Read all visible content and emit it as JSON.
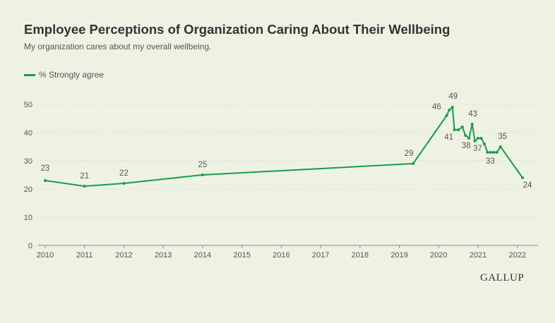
{
  "header": {
    "title": "Employee Perceptions of Organization Caring About Their Wellbeing",
    "subtitle": "My organization cares about my overall wellbeing."
  },
  "brand": {
    "name": "GALLUP"
  },
  "colors": {
    "line": "#1a9c48",
    "background": "#eef2e3",
    "grid": "#cfd4c4",
    "text": "#555555"
  },
  "chart_data": {
    "type": "line",
    "title": "Employee Perceptions of Organization Caring About Their Wellbeing",
    "subtitle": "My organization cares about my overall wellbeing.",
    "xlabel": "",
    "ylabel": "",
    "xlim": [
      2010,
      2022.3
    ],
    "ylim": [
      0,
      50
    ],
    "x_ticks": [
      "2010",
      "2011",
      "2012",
      "2013",
      "2014",
      "2015",
      "2016",
      "2017",
      "2018",
      "2019",
      "2020",
      "2021",
      "2022"
    ],
    "y_ticks": [
      "0",
      "10",
      "20",
      "30",
      "40",
      "50"
    ],
    "grid": "horizontal",
    "legend": "top-left",
    "series": [
      {
        "name": "% Strongly agree",
        "color": "#1a9c48",
        "points": [
          {
            "x": 2010.0,
            "y": 23,
            "label": "23"
          },
          {
            "x": 2011.0,
            "y": 21,
            "label": "21"
          },
          {
            "x": 2012.0,
            "y": 22,
            "label": "22"
          },
          {
            "x": 2014.0,
            "y": 25,
            "label": "25"
          },
          {
            "x": 2019.35,
            "y": 29,
            "label": "29"
          },
          {
            "x": 2020.2,
            "y": 46,
            "label": "46"
          },
          {
            "x": 2020.27,
            "y": 48,
            "label": ""
          },
          {
            "x": 2020.35,
            "y": 49,
            "label": "49"
          },
          {
            "x": 2020.4,
            "y": 41,
            "label": "41"
          },
          {
            "x": 2020.5,
            "y": 41,
            "label": ""
          },
          {
            "x": 2020.6,
            "y": 42,
            "label": ""
          },
          {
            "x": 2020.68,
            "y": 39,
            "label": ""
          },
          {
            "x": 2020.77,
            "y": 38,
            "label": "38"
          },
          {
            "x": 2020.85,
            "y": 43,
            "label": "43"
          },
          {
            "x": 2020.92,
            "y": 37,
            "label": "37"
          },
          {
            "x": 2021.0,
            "y": 38,
            "label": ""
          },
          {
            "x": 2021.08,
            "y": 38,
            "label": ""
          },
          {
            "x": 2021.16,
            "y": 36,
            "label": ""
          },
          {
            "x": 2021.24,
            "y": 33,
            "label": "33"
          },
          {
            "x": 2021.32,
            "y": 33,
            "label": ""
          },
          {
            "x": 2021.4,
            "y": 33,
            "label": ""
          },
          {
            "x": 2021.48,
            "y": 33,
            "label": ""
          },
          {
            "x": 2021.57,
            "y": 35,
            "label": "35"
          },
          {
            "x": 2022.13,
            "y": 24,
            "label": "24"
          }
        ]
      }
    ]
  }
}
